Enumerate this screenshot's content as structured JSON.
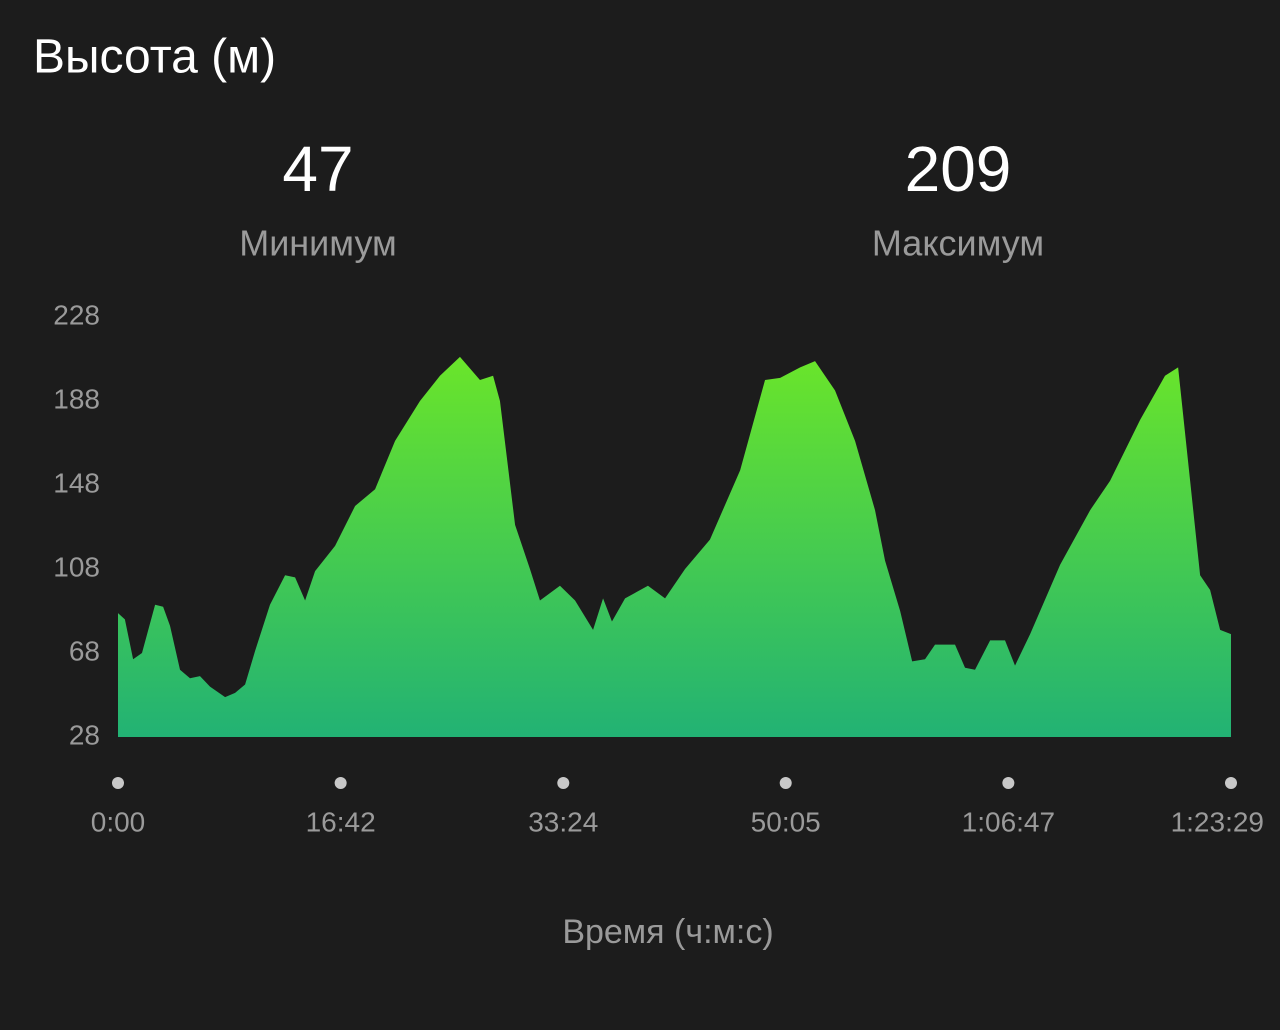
{
  "chart_data": {
    "type": "area",
    "title": "Высота (м)",
    "x_label": "Время (ч:м:с)",
    "x": [
      0,
      31,
      68,
      108,
      167,
      203,
      234,
      279,
      324,
      369,
      414,
      482,
      527,
      572,
      617,
      684,
      752,
      797,
      842,
      887,
      977,
      1067,
      1157,
      1247,
      1359,
      1449,
      1539,
      1629,
      1688,
      1719,
      1787,
      1854,
      1899,
      1989,
      2057,
      2138,
      2183,
      2223,
      2282,
      2385,
      2462,
      2552,
      2664,
      2800,
      2912,
      2980,
      3070,
      3137,
      3227,
      3317,
      3407,
      3452,
      3520,
      3574,
      3632,
      3677,
      3767,
      3812,
      3857,
      3925,
      3992,
      4037,
      4105,
      4240,
      4375,
      4465,
      4600,
      4712,
      4771,
      4825,
      4870,
      4915,
      4960,
      5009
    ],
    "values": [
      87,
      84,
      65,
      68,
      91,
      90,
      81,
      60,
      56,
      57,
      52,
      47,
      49,
      53,
      69,
      91,
      105,
      104,
      93,
      107,
      119,
      138,
      146,
      169,
      188,
      200,
      209,
      198,
      200,
      188,
      129,
      108,
      93,
      100,
      93,
      79,
      94,
      83,
      94,
      100,
      94,
      108,
      122,
      155,
      198,
      199,
      204,
      207,
      193,
      169,
      136,
      112,
      88,
      64,
      65,
      72,
      72,
      61,
      60,
      74,
      74,
      62,
      77,
      110,
      136,
      150,
      179,
      200,
      204,
      150,
      105,
      98,
      79,
      77
    ],
    "gradient": [
      "#6ae52a",
      "#22b274"
    ],
    "xlim": [
      0,
      5009
    ],
    "xticks": [
      {
        "value": 0,
        "label": "0:00"
      },
      {
        "value": 1002,
        "label": "16:42"
      },
      {
        "value": 2004,
        "label": "33:24"
      },
      {
        "value": 3005,
        "label": "50:05"
      },
      {
        "value": 4007,
        "label": "1:06:47"
      },
      {
        "value": 5009,
        "label": "1:23:29"
      }
    ],
    "ylim": [
      28,
      228
    ],
    "yticks": [
      28,
      68,
      108,
      148,
      188,
      228
    ],
    "grid": false
  },
  "stats": [
    {
      "value": 47,
      "label": "Минимум"
    },
    {
      "value": 209,
      "label": "Максимум"
    }
  ]
}
